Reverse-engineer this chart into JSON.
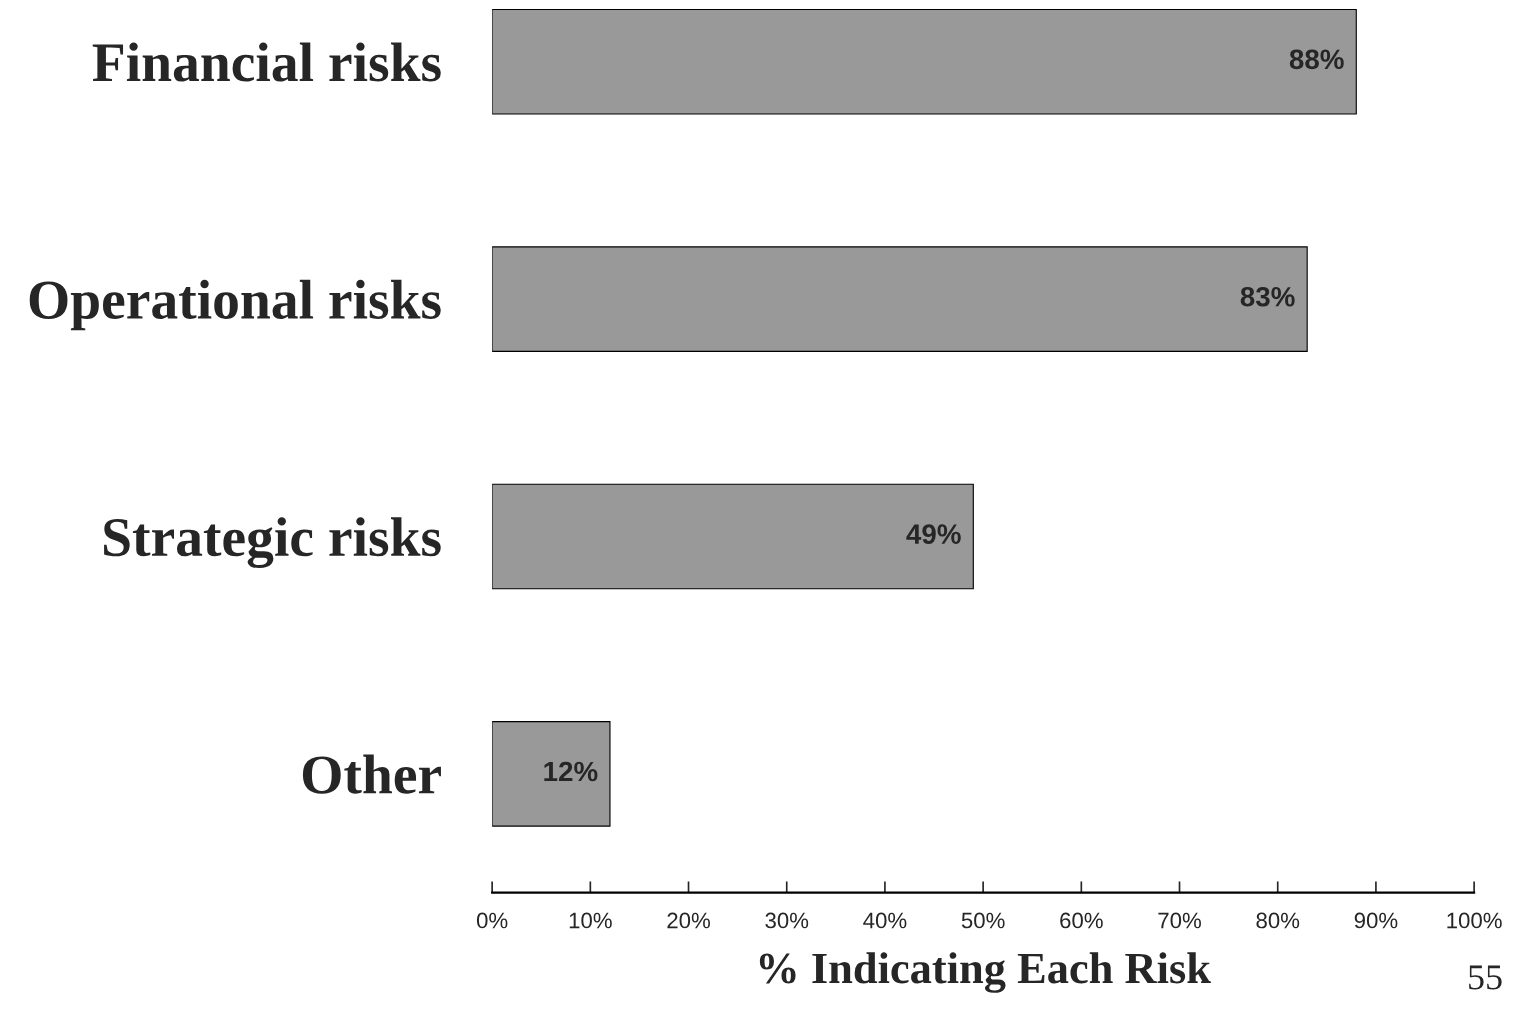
{
  "chart_data": {
    "type": "bar",
    "orientation": "horizontal",
    "categories": [
      "Financial risks",
      "Operational risks",
      "Strategic risks",
      "Other"
    ],
    "values": [
      88,
      83,
      49,
      12
    ],
    "color": "#999999",
    "value_labels": [
      "88%",
      "83%",
      "49%",
      "12%"
    ],
    "xlabel": "% Indicating Each Risk",
    "xlim": [
      0,
      100
    ],
    "xticks": [
      {
        "value": 0,
        "label": "0%"
      },
      {
        "value": 10,
        "label": "10%"
      },
      {
        "value": 20,
        "label": "20%"
      },
      {
        "value": 30,
        "label": "30%"
      },
      {
        "value": 40,
        "label": "40%"
      },
      {
        "value": 50,
        "label": "50%"
      },
      {
        "value": 60,
        "label": "60%"
      },
      {
        "value": 70,
        "label": "70%"
      },
      {
        "value": 80,
        "label": "80%"
      },
      {
        "value": 90,
        "label": "90%"
      },
      {
        "value": 100,
        "label": "100%"
      }
    ],
    "grid": false,
    "legend": false,
    "annotations": [
      "55"
    ]
  }
}
